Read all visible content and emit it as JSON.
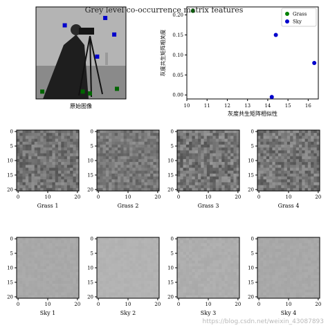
{
  "figure_title": "Grey level co-occurrence matrix features",
  "watermark": "https://blog.csdn.net/weixin_43087893",
  "chart_data": [
    {
      "type": "image",
      "title": "",
      "xlabel": "原始图像",
      "description_note": "",
      "markers": [
        {
          "series": "Sky",
          "color": "#0000cc",
          "shape": "square",
          "points": [
            [
              0.32,
              0.2
            ],
            [
              0.77,
              0.12
            ],
            [
              0.87,
              0.3
            ],
            [
              0.68,
              0.54
            ]
          ]
        },
        {
          "series": "Grass",
          "color": "#006400",
          "shape": "square",
          "points": [
            [
              0.07,
              0.92
            ],
            [
              0.52,
              0.92
            ],
            [
              0.6,
              0.94
            ],
            [
              0.9,
              0.89
            ]
          ]
        }
      ]
    },
    {
      "type": "scatter",
      "title": "",
      "xlabel": "灰度共生矩阵相似性",
      "ylabel": "灰度共生矩阵相关度",
      "xlim": [
        10,
        16.5
      ],
      "ylim": [
        -0.01,
        0.22
      ],
      "xticks": [
        "10",
        "11",
        "12",
        "13",
        "14",
        "15",
        "16"
      ],
      "yticks": [
        "0.00",
        "0.05",
        "0.10",
        "0.15",
        "0.20"
      ],
      "legend_position": "top-right",
      "series": [
        {
          "name": "Grass",
          "color": "#008000",
          "x": [
            10.3
          ],
          "y": [
            0.21
          ]
        },
        {
          "name": "Sky",
          "color": "#0000cc",
          "x": [
            14.2,
            14.4,
            16.3
          ],
          "y": [
            -0.005,
            0.15,
            0.08
          ]
        }
      ]
    },
    {
      "type": "heatmap",
      "panels": [
        {
          "label": "Grass 1",
          "tone": 0.45,
          "spread": 0.12,
          "seed": 11
        },
        {
          "label": "Grass 2",
          "tone": 0.47,
          "spread": 0.1,
          "seed": 23
        },
        {
          "label": "Grass 3",
          "tone": 0.46,
          "spread": 0.14,
          "seed": 37
        },
        {
          "label": "Grass 4",
          "tone": 0.46,
          "spread": 0.13,
          "seed": 51
        },
        {
          "label": "Sky 1",
          "tone": 0.66,
          "spread": 0.015,
          "seed": 61
        },
        {
          "label": "Sky 2",
          "tone": 0.7,
          "spread": 0.012,
          "seed": 73
        },
        {
          "label": "Sky 3",
          "tone": 0.68,
          "spread": 0.018,
          "seed": 89
        },
        {
          "label": "Sky 4",
          "tone": 0.66,
          "spread": 0.016,
          "seed": 97
        }
      ],
      "xticks": [
        "0",
        "10",
        "20"
      ],
      "yticks": [
        "0",
        "5",
        "10",
        "15",
        "20"
      ],
      "xlim": [
        0,
        20
      ],
      "ylim": [
        0,
        20
      ]
    }
  ]
}
